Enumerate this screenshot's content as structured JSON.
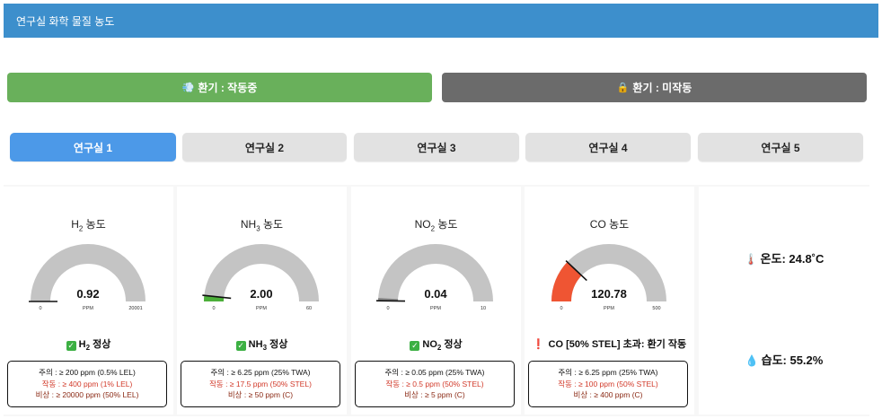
{
  "header": {
    "title": "연구실 화학 물질 농도"
  },
  "ventilation": {
    "on": {
      "icon": "wind-icon",
      "label": "환기 : 작동중"
    },
    "off": {
      "icon": "lock-icon",
      "label": "환기 : 미작동"
    }
  },
  "tabs": [
    "연구실 1",
    "연구실 2",
    "연구실 3",
    "연구실 4",
    "연구실 5"
  ],
  "active_tab": "연구실 1",
  "sensors": [
    {
      "formula": "H",
      "sub": "2",
      "suffix": " 농도",
      "value": "0.92",
      "value_num": 0.92,
      "unit": "PPM",
      "min": "0",
      "max": "20001",
      "max_num": 20001,
      "fill_color": "#888888",
      "status_icon": "check-icon",
      "status_formula": "H",
      "status_sub": "2",
      "status_text": " 정상",
      "th_caution": "주의 : ≥ 200 ppm (0.5% LEL)",
      "th_operate": "작동 : ≥ 400 ppm (1% LEL)",
      "th_emergency": "비상 : ≥ 20000 ppm (50% LEL)"
    },
    {
      "formula": "NH",
      "sub": "3",
      "suffix": " 농도",
      "value": "2.00",
      "value_num": 2.0,
      "unit": "PPM",
      "min": "0",
      "max": "60",
      "max_num": 60,
      "fill_color": "#4caf3a",
      "status_icon": "check-icon",
      "status_formula": "NH",
      "status_sub": "3",
      "status_text": " 정상",
      "th_caution": "주의 : ≥ 6.25 ppm (25% TWA)",
      "th_operate": "작동 : ≥ 17.5 ppm (50% STEL)",
      "th_emergency": "비상 : ≥ 50 ppm (C)"
    },
    {
      "formula": "NO",
      "sub": "2",
      "suffix": " 농도",
      "value": "0.04",
      "value_num": 0.04,
      "unit": "PPM",
      "min": "0",
      "max": "10",
      "max_num": 10,
      "fill_color": "#888888",
      "status_icon": "check-icon",
      "status_formula": "NO",
      "status_sub": "2",
      "status_text": " 정상",
      "th_caution": "주의 : ≥ 0.05 ppm (25% TWA)",
      "th_operate": "작동 : ≥ 0.5 ppm (50% STEL)",
      "th_emergency": "비상 : ≥ 5 ppm (C)"
    },
    {
      "formula": "CO",
      "sub": "",
      "suffix": " 농도",
      "value": "120.78",
      "value_num": 120.78,
      "unit": "PPM",
      "min": "0",
      "max": "500",
      "max_num": 500,
      "fill_color": "#ef5533",
      "status_icon": "exclamation-icon",
      "status_formula": "CO [50% STEL] 초과: 환기 작동",
      "status_sub": "",
      "status_text": "",
      "th_caution": "주의 : ≥ 6.25 ppm (25% TWA)",
      "th_operate": "작동 : ≥ 100 ppm (50% STEL)",
      "th_emergency": "비상 : ≥ 400 ppm (C)"
    }
  ],
  "environment": {
    "temperature": {
      "icon": "thermometer-icon",
      "label": "온도: 24.8˚C"
    },
    "humidity": {
      "icon": "droplet-icon",
      "label": "습도: 55.2%"
    }
  },
  "colors": {
    "header": "#3d8fcc",
    "vent_on": "#69b05b",
    "vent_off": "#6b6b6b",
    "tab_active": "#4c99e8",
    "gauge_track": "#c4c4c4"
  }
}
